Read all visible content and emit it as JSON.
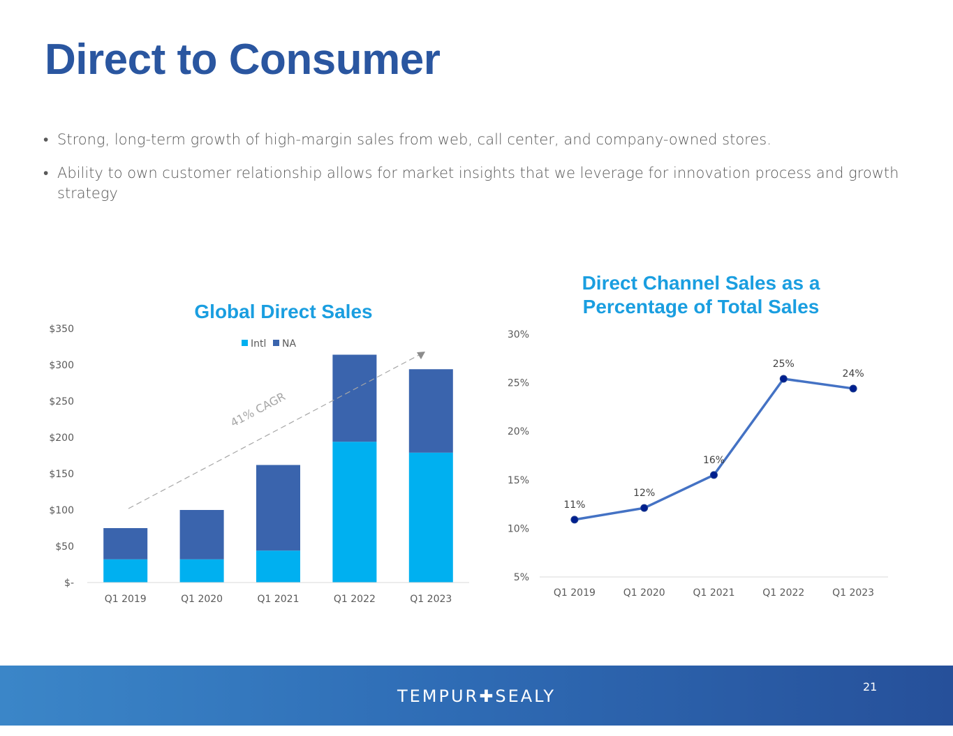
{
  "slide": {
    "title": "Direct to Consumer",
    "bullets": [
      "Strong, long-term growth of high-margin sales from web, call center, and company-owned stores.",
      "Ability to own customer relationship allows for market insights that we leverage for innovation process and growth strategy"
    ],
    "logo_left": "TEMPUR",
    "logo_symbol": "✚",
    "logo_right": "SEALY",
    "page_number": "21"
  },
  "colors": {
    "title": "#2a56a0",
    "intl": "#00b0f0",
    "na": "#3a64ad",
    "line": "#4472c4",
    "marker": "#001f8f",
    "chart_title": "#1a9ee0"
  },
  "chart_data": [
    {
      "type": "bar",
      "stacked": true,
      "title": "Global Direct Sales",
      "categories": [
        "Q1 2019",
        "Q1 2020",
        "Q1 2021",
        "Q1 2022",
        "Q1 2023"
      ],
      "series": [
        {
          "name": "Intl",
          "values": [
            32,
            32,
            44,
            194,
            179
          ]
        },
        {
          "name": "NA",
          "values": [
            43,
            68,
            118,
            120,
            115
          ]
        }
      ],
      "ylim": [
        0,
        350
      ],
      "yticks": [
        "$-",
        "$50",
        "$100",
        "$150",
        "$200",
        "$250",
        "$300",
        "$350"
      ],
      "annotation": "41% CAGR",
      "legend_position": "top-center"
    },
    {
      "type": "line",
      "title": "Direct Channel Sales as a Percentage of Total Sales",
      "title_lines": [
        "Direct Channel Sales as a",
        "Percentage of Total Sales"
      ],
      "categories": [
        "Q1 2019",
        "Q1 2020",
        "Q1 2021",
        "Q1 2022",
        "Q1 2023"
      ],
      "values": [
        10.9,
        12.1,
        15.5,
        25.4,
        24.4
      ],
      "data_labels": [
        "11%",
        "12%",
        "16%",
        "25%",
        "24%"
      ],
      "ylim": [
        5,
        30
      ],
      "yticks": [
        "5%",
        "10%",
        "15%",
        "20%",
        "25%",
        "30%"
      ]
    }
  ]
}
